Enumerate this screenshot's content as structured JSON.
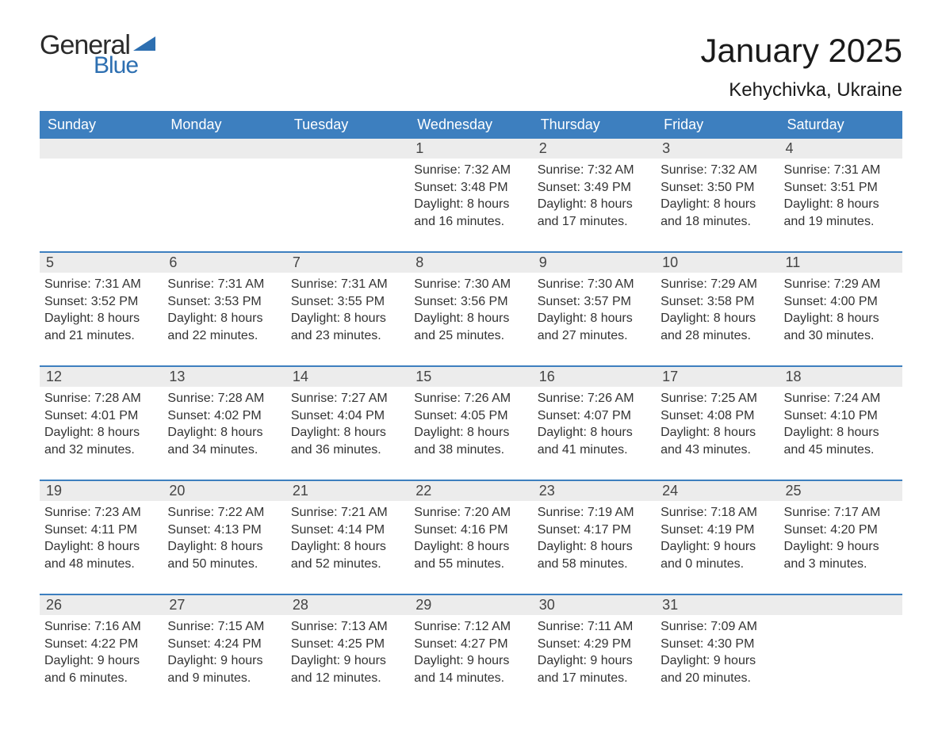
{
  "logo": {
    "text_general": "General",
    "text_blue": "Blue",
    "wedge_color": "#2d6fb1",
    "text_color_dark": "#2b2b2b"
  },
  "title": "January 2025",
  "location": "Kehychivka, Ukraine",
  "colors": {
    "header_bg": "#3d7fbf",
    "header_text": "#ffffff",
    "daynum_bg": "#ececec",
    "daynum_text": "#444444",
    "body_text": "#333333",
    "week_border": "#3d7fbf",
    "page_bg": "#ffffff"
  },
  "typography": {
    "title_fontsize": 42,
    "location_fontsize": 24,
    "dow_fontsize": 18,
    "daynum_fontsize": 18,
    "body_fontsize": 16,
    "font_family": "Arial"
  },
  "days_of_week": [
    "Sunday",
    "Monday",
    "Tuesday",
    "Wednesday",
    "Thursday",
    "Friday",
    "Saturday"
  ],
  "weeks": [
    [
      {
        "n": "",
        "sunrise": "",
        "sunset": "",
        "daylight1": "",
        "daylight2": ""
      },
      {
        "n": "",
        "sunrise": "",
        "sunset": "",
        "daylight1": "",
        "daylight2": ""
      },
      {
        "n": "",
        "sunrise": "",
        "sunset": "",
        "daylight1": "",
        "daylight2": ""
      },
      {
        "n": "1",
        "sunrise": "Sunrise: 7:32 AM",
        "sunset": "Sunset: 3:48 PM",
        "daylight1": "Daylight: 8 hours",
        "daylight2": "and 16 minutes."
      },
      {
        "n": "2",
        "sunrise": "Sunrise: 7:32 AM",
        "sunset": "Sunset: 3:49 PM",
        "daylight1": "Daylight: 8 hours",
        "daylight2": "and 17 minutes."
      },
      {
        "n": "3",
        "sunrise": "Sunrise: 7:32 AM",
        "sunset": "Sunset: 3:50 PM",
        "daylight1": "Daylight: 8 hours",
        "daylight2": "and 18 minutes."
      },
      {
        "n": "4",
        "sunrise": "Sunrise: 7:31 AM",
        "sunset": "Sunset: 3:51 PM",
        "daylight1": "Daylight: 8 hours",
        "daylight2": "and 19 minutes."
      }
    ],
    [
      {
        "n": "5",
        "sunrise": "Sunrise: 7:31 AM",
        "sunset": "Sunset: 3:52 PM",
        "daylight1": "Daylight: 8 hours",
        "daylight2": "and 21 minutes."
      },
      {
        "n": "6",
        "sunrise": "Sunrise: 7:31 AM",
        "sunset": "Sunset: 3:53 PM",
        "daylight1": "Daylight: 8 hours",
        "daylight2": "and 22 minutes."
      },
      {
        "n": "7",
        "sunrise": "Sunrise: 7:31 AM",
        "sunset": "Sunset: 3:55 PM",
        "daylight1": "Daylight: 8 hours",
        "daylight2": "and 23 minutes."
      },
      {
        "n": "8",
        "sunrise": "Sunrise: 7:30 AM",
        "sunset": "Sunset: 3:56 PM",
        "daylight1": "Daylight: 8 hours",
        "daylight2": "and 25 minutes."
      },
      {
        "n": "9",
        "sunrise": "Sunrise: 7:30 AM",
        "sunset": "Sunset: 3:57 PM",
        "daylight1": "Daylight: 8 hours",
        "daylight2": "and 27 minutes."
      },
      {
        "n": "10",
        "sunrise": "Sunrise: 7:29 AM",
        "sunset": "Sunset: 3:58 PM",
        "daylight1": "Daylight: 8 hours",
        "daylight2": "and 28 minutes."
      },
      {
        "n": "11",
        "sunrise": "Sunrise: 7:29 AM",
        "sunset": "Sunset: 4:00 PM",
        "daylight1": "Daylight: 8 hours",
        "daylight2": "and 30 minutes."
      }
    ],
    [
      {
        "n": "12",
        "sunrise": "Sunrise: 7:28 AM",
        "sunset": "Sunset: 4:01 PM",
        "daylight1": "Daylight: 8 hours",
        "daylight2": "and 32 minutes."
      },
      {
        "n": "13",
        "sunrise": "Sunrise: 7:28 AM",
        "sunset": "Sunset: 4:02 PM",
        "daylight1": "Daylight: 8 hours",
        "daylight2": "and 34 minutes."
      },
      {
        "n": "14",
        "sunrise": "Sunrise: 7:27 AM",
        "sunset": "Sunset: 4:04 PM",
        "daylight1": "Daylight: 8 hours",
        "daylight2": "and 36 minutes."
      },
      {
        "n": "15",
        "sunrise": "Sunrise: 7:26 AM",
        "sunset": "Sunset: 4:05 PM",
        "daylight1": "Daylight: 8 hours",
        "daylight2": "and 38 minutes."
      },
      {
        "n": "16",
        "sunrise": "Sunrise: 7:26 AM",
        "sunset": "Sunset: 4:07 PM",
        "daylight1": "Daylight: 8 hours",
        "daylight2": "and 41 minutes."
      },
      {
        "n": "17",
        "sunrise": "Sunrise: 7:25 AM",
        "sunset": "Sunset: 4:08 PM",
        "daylight1": "Daylight: 8 hours",
        "daylight2": "and 43 minutes."
      },
      {
        "n": "18",
        "sunrise": "Sunrise: 7:24 AM",
        "sunset": "Sunset: 4:10 PM",
        "daylight1": "Daylight: 8 hours",
        "daylight2": "and 45 minutes."
      }
    ],
    [
      {
        "n": "19",
        "sunrise": "Sunrise: 7:23 AM",
        "sunset": "Sunset: 4:11 PM",
        "daylight1": "Daylight: 8 hours",
        "daylight2": "and 48 minutes."
      },
      {
        "n": "20",
        "sunrise": "Sunrise: 7:22 AM",
        "sunset": "Sunset: 4:13 PM",
        "daylight1": "Daylight: 8 hours",
        "daylight2": "and 50 minutes."
      },
      {
        "n": "21",
        "sunrise": "Sunrise: 7:21 AM",
        "sunset": "Sunset: 4:14 PM",
        "daylight1": "Daylight: 8 hours",
        "daylight2": "and 52 minutes."
      },
      {
        "n": "22",
        "sunrise": "Sunrise: 7:20 AM",
        "sunset": "Sunset: 4:16 PM",
        "daylight1": "Daylight: 8 hours",
        "daylight2": "and 55 minutes."
      },
      {
        "n": "23",
        "sunrise": "Sunrise: 7:19 AM",
        "sunset": "Sunset: 4:17 PM",
        "daylight1": "Daylight: 8 hours",
        "daylight2": "and 58 minutes."
      },
      {
        "n": "24",
        "sunrise": "Sunrise: 7:18 AM",
        "sunset": "Sunset: 4:19 PM",
        "daylight1": "Daylight: 9 hours",
        "daylight2": "and 0 minutes."
      },
      {
        "n": "25",
        "sunrise": "Sunrise: 7:17 AM",
        "sunset": "Sunset: 4:20 PM",
        "daylight1": "Daylight: 9 hours",
        "daylight2": "and 3 minutes."
      }
    ],
    [
      {
        "n": "26",
        "sunrise": "Sunrise: 7:16 AM",
        "sunset": "Sunset: 4:22 PM",
        "daylight1": "Daylight: 9 hours",
        "daylight2": "and 6 minutes."
      },
      {
        "n": "27",
        "sunrise": "Sunrise: 7:15 AM",
        "sunset": "Sunset: 4:24 PM",
        "daylight1": "Daylight: 9 hours",
        "daylight2": "and 9 minutes."
      },
      {
        "n": "28",
        "sunrise": "Sunrise: 7:13 AM",
        "sunset": "Sunset: 4:25 PM",
        "daylight1": "Daylight: 9 hours",
        "daylight2": "and 12 minutes."
      },
      {
        "n": "29",
        "sunrise": "Sunrise: 7:12 AM",
        "sunset": "Sunset: 4:27 PM",
        "daylight1": "Daylight: 9 hours",
        "daylight2": "and 14 minutes."
      },
      {
        "n": "30",
        "sunrise": "Sunrise: 7:11 AM",
        "sunset": "Sunset: 4:29 PM",
        "daylight1": "Daylight: 9 hours",
        "daylight2": "and 17 minutes."
      },
      {
        "n": "31",
        "sunrise": "Sunrise: 7:09 AM",
        "sunset": "Sunset: 4:30 PM",
        "daylight1": "Daylight: 9 hours",
        "daylight2": "and 20 minutes."
      },
      {
        "n": "",
        "sunrise": "",
        "sunset": "",
        "daylight1": "",
        "daylight2": ""
      }
    ]
  ]
}
